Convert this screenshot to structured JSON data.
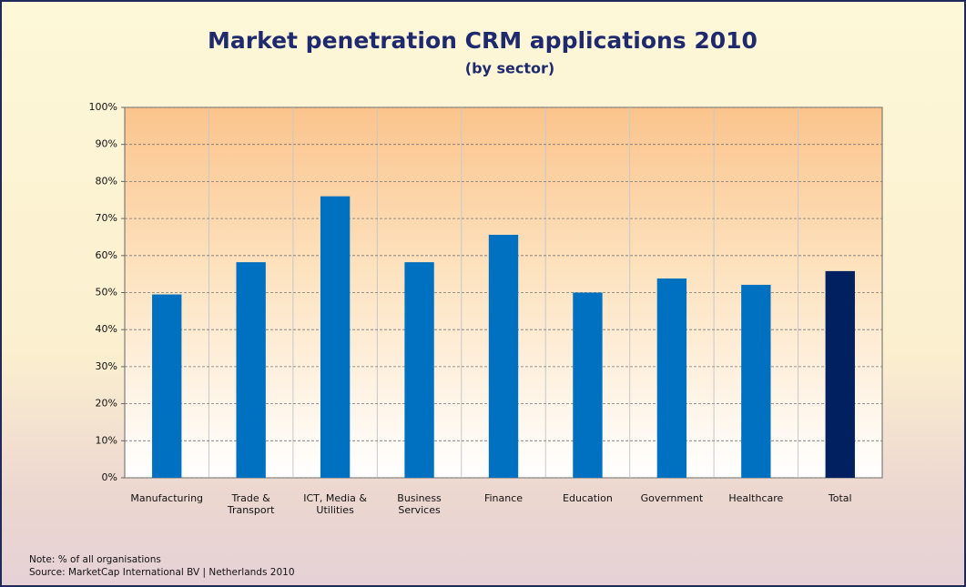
{
  "chart_data": {
    "type": "bar",
    "title": "Market penetration CRM applications 2010",
    "subtitle": "(by sector)",
    "categories": [
      "Manufacturing",
      "Trade & Transport",
      "ICT, Media & Utilities",
      "Business Services",
      "Finance",
      "Education",
      "Government",
      "Healthcare",
      "Total"
    ],
    "values": [
      49.5,
      58.2,
      76,
      58.2,
      65.6,
      50,
      53.8,
      52.1,
      55.8
    ],
    "colors": [
      "#0070c0",
      "#0070c0",
      "#0070c0",
      "#0070c0",
      "#0070c0",
      "#0070c0",
      "#0070c0",
      "#0070c0",
      "#002060"
    ],
    "ylim": [
      0,
      100
    ],
    "yticks": [
      {
        "value": 0,
        "label": "0%"
      },
      {
        "value": 10,
        "label": "10%"
      },
      {
        "value": 20,
        "label": "20%"
      },
      {
        "value": 30,
        "label": "30%"
      },
      {
        "value": 40,
        "label": "40%"
      },
      {
        "value": 50,
        "label": "50%"
      },
      {
        "value": 60,
        "label": "60%"
      },
      {
        "value": 70,
        "label": "70%"
      },
      {
        "value": 80,
        "label": "80%"
      },
      {
        "value": 90,
        "label": "90%"
      },
      {
        "value": 100,
        "label": "100%"
      }
    ],
    "grid": true,
    "note": "Note: % of all organisations",
    "source": "Source: MarketCap International BV | Netherlands 2010"
  }
}
